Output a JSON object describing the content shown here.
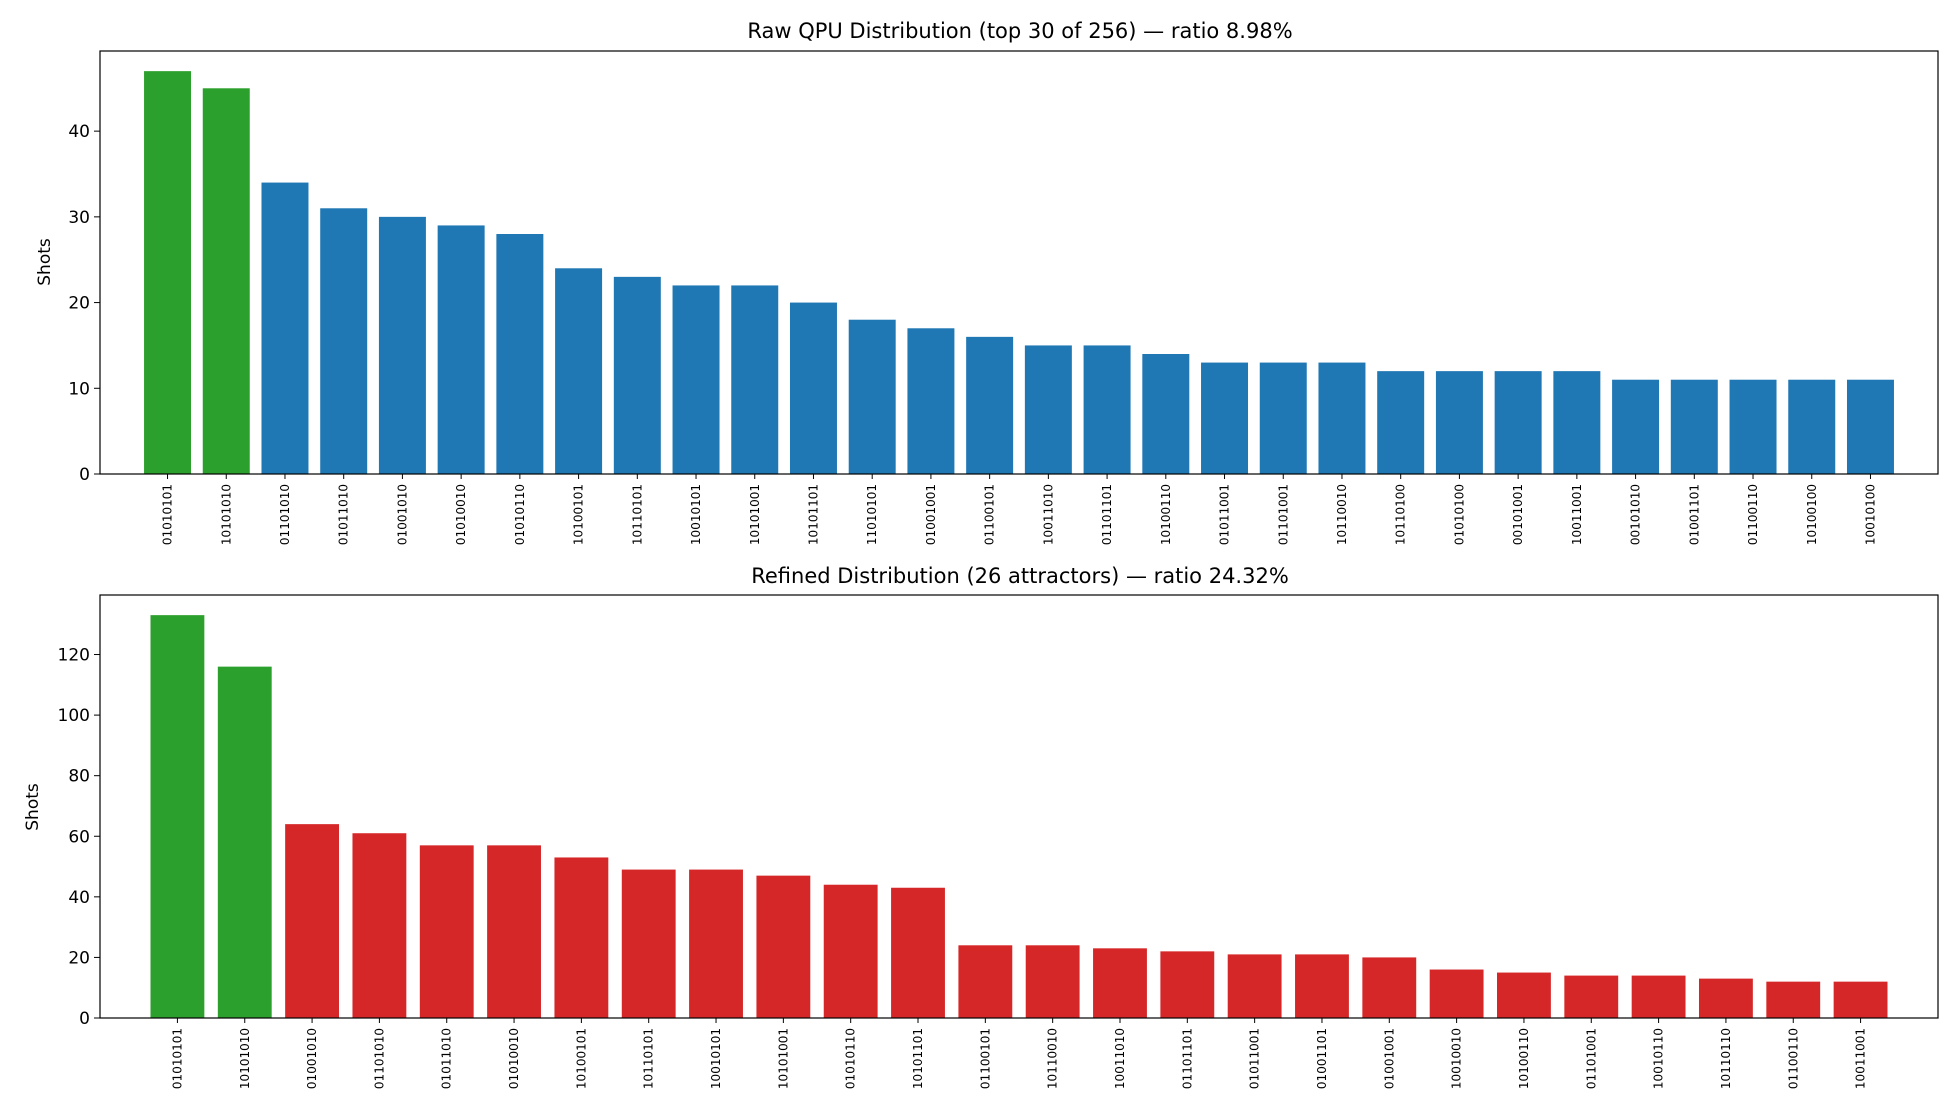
{
  "chart_data": [
    {
      "type": "bar",
      "title": "Raw QPU Distribution (top 30 of 256) — ratio 8.98%",
      "xlabel": "",
      "ylabel": "Shots",
      "ylim": [
        0,
        49.35
      ],
      "yticks": [
        0,
        10,
        20,
        30,
        40
      ],
      "grid": false,
      "highlight_color": "#2ca02c",
      "base_color": "#1f77b4",
      "categories": [
        "01010101",
        "10101010",
        "01101010",
        "01011010",
        "01001010",
        "01010010",
        "01010110",
        "10100101",
        "10110101",
        "10010101",
        "10101001",
        "10101101",
        "11010101",
        "01001001",
        "01100101",
        "10011010",
        "01101101",
        "10100110",
        "01011001",
        "01101001",
        "10110010",
        "10110100",
        "01010100",
        "00101001",
        "10011001",
        "00101010",
        "01001101",
        "01100110",
        "10100100",
        "10010100"
      ],
      "values": [
        47,
        45,
        34,
        31,
        30,
        29,
        28,
        24,
        23,
        22,
        22,
        20,
        18,
        17,
        16,
        15,
        15,
        14,
        13,
        13,
        13,
        12,
        12,
        12,
        12,
        11,
        11,
        11,
        11,
        11
      ],
      "highlighted": [
        true,
        true,
        false,
        false,
        false,
        false,
        false,
        false,
        false,
        false,
        false,
        false,
        false,
        false,
        false,
        false,
        false,
        false,
        false,
        false,
        false,
        false,
        false,
        false,
        false,
        false,
        false,
        false,
        false,
        false
      ]
    },
    {
      "type": "bar",
      "title": "Refined Distribution (26 attractors) — ratio 24.32%",
      "xlabel": "",
      "ylabel": "Shots",
      "ylim": [
        0,
        139.65
      ],
      "yticks": [
        0,
        20,
        40,
        60,
        80,
        100,
        120
      ],
      "grid": false,
      "highlight_color": "#2ca02c",
      "base_color": "#d62728",
      "categories": [
        "01010101",
        "10101010",
        "01001010",
        "01101010",
        "01011010",
        "01010010",
        "10100101",
        "10110101",
        "10010101",
        "10101001",
        "01010110",
        "10101101",
        "01100101",
        "10110010",
        "10011010",
        "01101101",
        "01011001",
        "01001101",
        "01001001",
        "10010010",
        "10100110",
        "01101001",
        "10010110",
        "10110110",
        "01100110",
        "10011001"
      ],
      "values": [
        133,
        116,
        64,
        61,
        57,
        57,
        53,
        49,
        49,
        47,
        44,
        43,
        24,
        24,
        23,
        22,
        21,
        21,
        20,
        16,
        15,
        14,
        14,
        13,
        12,
        12
      ],
      "highlighted": [
        true,
        true,
        false,
        false,
        false,
        false,
        false,
        false,
        false,
        false,
        false,
        false,
        false,
        false,
        false,
        false,
        false,
        false,
        false,
        false,
        false,
        false,
        false,
        false,
        false,
        false
      ]
    }
  ]
}
